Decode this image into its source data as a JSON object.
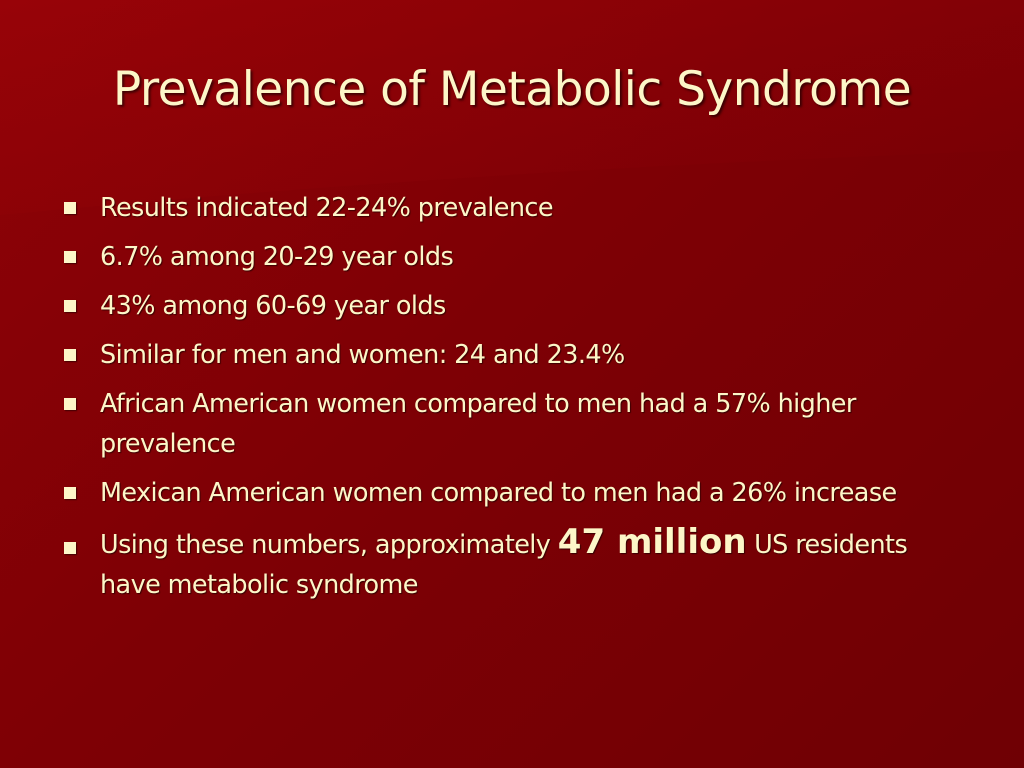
{
  "slide": {
    "title": "Prevalence of Metabolic Syndrome",
    "bullets": [
      "Results indicated 22-24% prevalence",
      "6.7% among 20-29 year olds",
      "43% among 60-69 year olds",
      "Similar for men and women:  24 and 23.4%",
      "African American women compared to men had a 57% higher prevalence",
      "Mexican American women compared to men had a 26% increase"
    ],
    "last_bullet": {
      "before": "Using these numbers, approximately ",
      "emphasis": "47 million",
      "after": " US residents have metabolic syndrome"
    }
  },
  "colors": {
    "background": "#800005",
    "text": "#fdf6c8"
  },
  "icons": {
    "bullet_marker": "square-bullet-icon"
  }
}
